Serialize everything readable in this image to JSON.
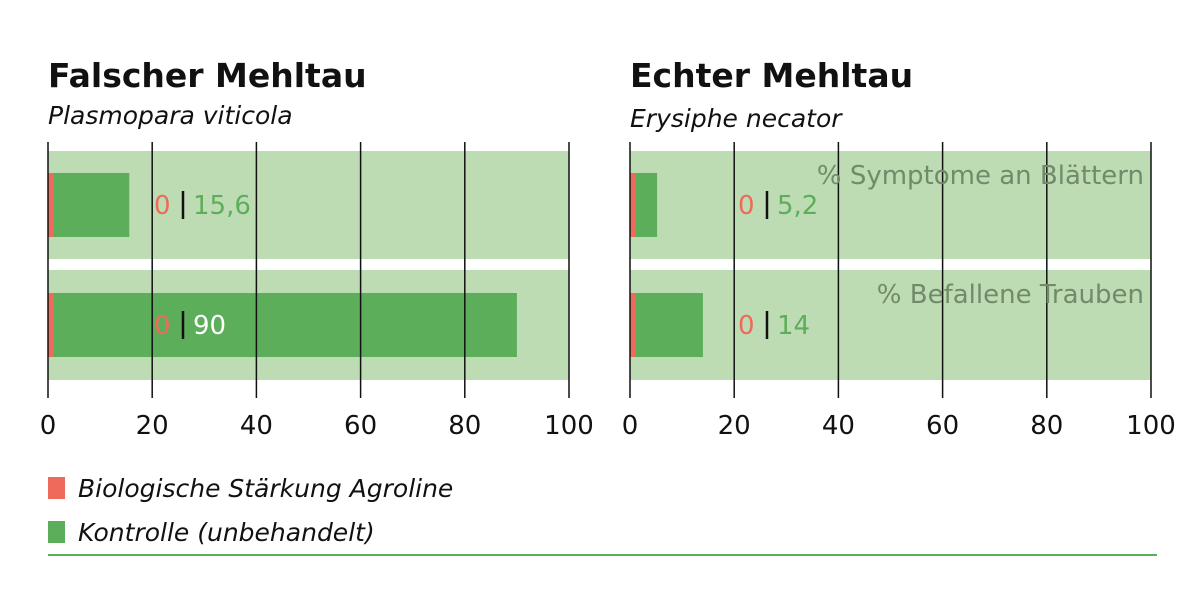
{
  "colors": {
    "treated": "#ee6b5b",
    "control": "#5dae5b",
    "band": "#bddcb3",
    "row_label": "#6f8b6a",
    "axis": "#111111"
  },
  "legend": {
    "treated_label": "Biologische Stärkung Agroline",
    "control_label": "Kontrolle (unbehandelt)"
  },
  "chart_data": [
    {
      "type": "bar",
      "orientation": "horizontal",
      "title": "Falscher Mehltau",
      "subtitle": "Plasmopara viticola",
      "categories": [
        "",
        ""
      ],
      "xlim": [
        0,
        100
      ],
      "xticks": [
        0,
        20,
        40,
        60,
        80,
        100
      ],
      "grid": true,
      "series": [
        {
          "name": "Biologische Stärkung Agroline",
          "values": [
            0,
            0
          ],
          "labels": [
            "0",
            "0"
          ]
        },
        {
          "name": "Kontrolle (unbehandelt)",
          "values": [
            15.6,
            90
          ],
          "labels": [
            "15,6",
            "90"
          ]
        }
      ]
    },
    {
      "type": "bar",
      "orientation": "horizontal",
      "title": "Echter Mehltau",
      "subtitle": "Erysiphe necator",
      "categories": [
        "% Symptome an Blättern",
        "%  Befallene Trauben"
      ],
      "xlim": [
        0,
        100
      ],
      "xticks": [
        0,
        20,
        40,
        60,
        80,
        100
      ],
      "grid": true,
      "series": [
        {
          "name": "Biologische Stärkung Agroline",
          "values": [
            0,
            0
          ],
          "labels": [
            "0",
            "0"
          ]
        },
        {
          "name": "Kontrolle (unbehandelt)",
          "values": [
            5.2,
            14
          ],
          "labels": [
            "5,2",
            "14"
          ]
        }
      ]
    }
  ]
}
